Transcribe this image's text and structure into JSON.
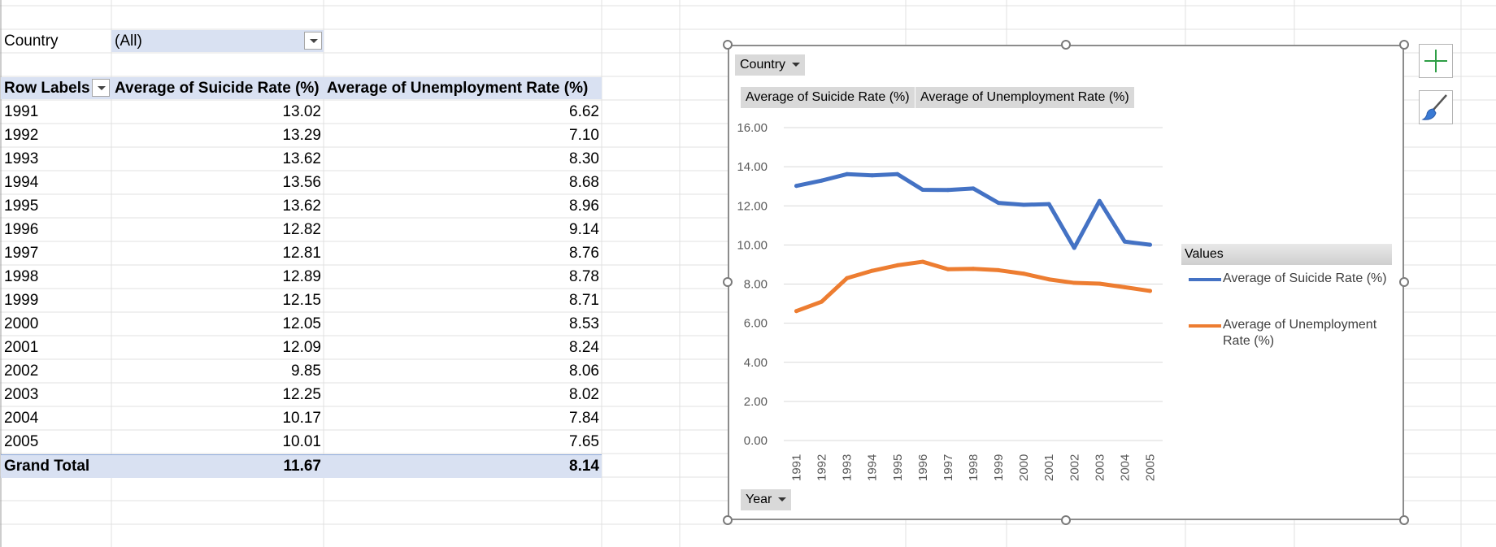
{
  "pivot": {
    "filter_label": "Country",
    "filter_value": "(All)",
    "headers": {
      "row_labels": "Row Labels",
      "col1": "Average of Suicide Rate (%)",
      "col2": "Average of Unemployment Rate (%)"
    },
    "rows": [
      {
        "year": "1991",
        "suicide": "13.02",
        "unemp": "6.62"
      },
      {
        "year": "1992",
        "suicide": "13.29",
        "unemp": "7.10"
      },
      {
        "year": "1993",
        "suicide": "13.62",
        "unemp": "8.30"
      },
      {
        "year": "1994",
        "suicide": "13.56",
        "unemp": "8.68"
      },
      {
        "year": "1995",
        "suicide": "13.62",
        "unemp": "8.96"
      },
      {
        "year": "1996",
        "suicide": "12.82",
        "unemp": "9.14"
      },
      {
        "year": "1997",
        "suicide": "12.81",
        "unemp": "8.76"
      },
      {
        "year": "1998",
        "suicide": "12.89",
        "unemp": "8.78"
      },
      {
        "year": "1999",
        "suicide": "12.15",
        "unemp": "8.71"
      },
      {
        "year": "2000",
        "suicide": "12.05",
        "unemp": "8.53"
      },
      {
        "year": "2001",
        "suicide": "12.09",
        "unemp": "8.24"
      },
      {
        "year": "2002",
        "suicide": "9.85",
        "unemp": "8.06"
      },
      {
        "year": "2003",
        "suicide": "12.25",
        "unemp": "8.02"
      },
      {
        "year": "2004",
        "suicide": "10.17",
        "unemp": "7.84"
      },
      {
        "year": "2005",
        "suicide": "10.01",
        "unemp": "7.65"
      }
    ],
    "total": {
      "label": "Grand Total",
      "suicide": "11.67",
      "unemp": "8.14"
    }
  },
  "chart_buttons": {
    "country": "Country",
    "series1": "Average of Suicide Rate (%)",
    "series2": "Average of Unemployment Rate (%)",
    "year": "Year"
  },
  "legend": {
    "title": "Values",
    "item1": "Average of Suicide Rate (%)",
    "item2_line1": "Average of Unemployment",
    "item2_line2": "Rate (%)"
  },
  "chart_data": {
    "type": "line",
    "x": [
      "1991",
      "1992",
      "1993",
      "1994",
      "1995",
      "1996",
      "1997",
      "1998",
      "1999",
      "2000",
      "2001",
      "2002",
      "2003",
      "2004",
      "2005"
    ],
    "series": [
      {
        "name": "Average of Suicide Rate (%)",
        "color": "#4472c4",
        "values": [
          13.02,
          13.29,
          13.62,
          13.56,
          13.62,
          12.82,
          12.81,
          12.89,
          12.15,
          12.05,
          12.09,
          9.85,
          12.25,
          10.17,
          10.01
        ]
      },
      {
        "name": "Average of Unemployment Rate (%)",
        "color": "#ed7d31",
        "values": [
          6.62,
          7.1,
          8.3,
          8.68,
          8.96,
          9.14,
          8.76,
          8.78,
          8.71,
          8.53,
          8.24,
          8.06,
          8.02,
          7.84,
          7.65
        ]
      }
    ],
    "yticks": [
      "0.00",
      "2.00",
      "4.00",
      "6.00",
      "8.00",
      "10.00",
      "12.00",
      "14.00",
      "16.00"
    ],
    "ylim": [
      0,
      16
    ],
    "grid": true,
    "legend_position": "right"
  }
}
